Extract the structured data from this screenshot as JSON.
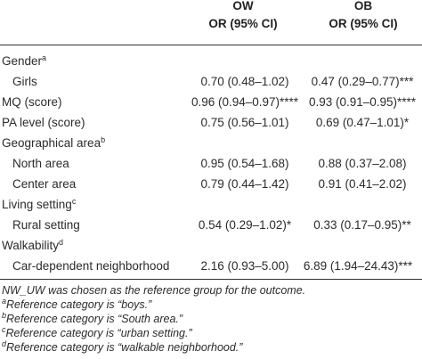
{
  "header": {
    "col1_title": "OW",
    "col2_title": "OB",
    "col1_sub": "OR (95% CI)",
    "col2_sub": "OR (95% CI)"
  },
  "rows": [
    {
      "label": "Gender",
      "sup": "a",
      "v1": "",
      "v2": ""
    },
    {
      "label": "Girls",
      "sup": "",
      "v1": "0.70 (0.48–1.02)",
      "v2": "0.47 (0.29–0.77)***"
    },
    {
      "label": "MQ (score)",
      "sup": "",
      "v1": "0.96 (0.94–0.97)****",
      "v2": "0.93 (0.91–0.95)****"
    },
    {
      "label": "PA level (score)",
      "sup": "",
      "v1": "0.75 (0.56–1.01)",
      "v2": "0.69 (0.47–1.01)*"
    },
    {
      "label": "Geographical area",
      "sup": "b",
      "v1": "",
      "v2": ""
    },
    {
      "label": "North area",
      "sup": "",
      "v1": "0.95 (0.54–1.68)",
      "v2": "0.88 (0.37–2.08)"
    },
    {
      "label": "Center area",
      "sup": "",
      "v1": "0.79 (0.44–1.42)",
      "v2": "0.91 (0.41–2.02)"
    },
    {
      "label": "Living setting",
      "sup": "c",
      "v1": "",
      "v2": ""
    },
    {
      "label": "Rural setting",
      "sup": "",
      "v1": "0.54 (0.29–1.02)*",
      "v2": "0.33 (0.17–0.95)**"
    },
    {
      "label": "Walkability",
      "sup": "d",
      "v1": "",
      "v2": ""
    },
    {
      "label": "Car-dependent neighborhood",
      "sup": "",
      "v1": "2.16 (0.93–5.00)",
      "v2": "6.89 (1.94–24.43)***"
    }
  ],
  "notes": {
    "main": "NW_UW was chosen as the reference group for the outcome.",
    "a_mark": "a",
    "a_text": "Reference category is “boys.”",
    "b_mark": "b",
    "b_text": "Reference category is “South area.”",
    "c_mark": "c",
    "c_text": "Reference category is “urban setting.”",
    "d_mark": "d",
    "d_text": "Reference category is “walkable neighborhood.”"
  }
}
